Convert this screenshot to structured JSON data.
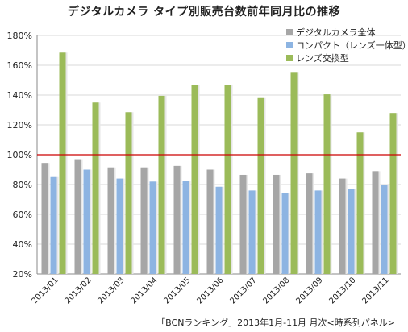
{
  "chart_data": {
    "type": "bar",
    "title": "デジタルカメラ タイプ別販売台数前年同月比の推移",
    "footer": "「BCNランキング」2013年1月-11月 月次<時系列パネル>",
    "categories": [
      "2013/01",
      "2013/02",
      "2013/03",
      "2013/04",
      "2013/05",
      "2013/06",
      "2013/07",
      "2013/08",
      "2013/09",
      "2013/10",
      "2013/11"
    ],
    "series": [
      {
        "name": "デジタルカメラ全体",
        "color": "#a6a6a6",
        "values": [
          94.5,
          97,
          91.5,
          91.5,
          92.5,
          90,
          86.5,
          86.5,
          87.5,
          84,
          89
        ]
      },
      {
        "name": "コンパクト（レンズ一体型）",
        "color": "#8db4e2",
        "values": [
          85,
          90,
          84,
          82,
          82.5,
          78.5,
          76,
          74.5,
          76,
          77,
          79.5
        ]
      },
      {
        "name": "レンズ交換型",
        "color": "#9bbb59",
        "values": [
          168.5,
          135,
          128.5,
          139.5,
          146.5,
          146.5,
          138.5,
          155.5,
          140.5,
          115,
          128
        ]
      }
    ],
    "yticks": [
      "20%",
      "40%",
      "60%",
      "80%",
      "100%",
      "120%",
      "140%",
      "160%",
      "180%"
    ],
    "ylim": [
      20,
      180
    ],
    "reference_line": {
      "value": 100,
      "color": "#cc0000"
    },
    "grid": true,
    "legend_position": "top-right"
  }
}
